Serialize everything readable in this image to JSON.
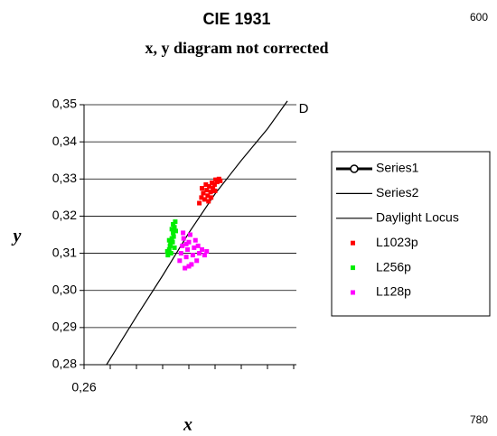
{
  "chart_data": {
    "type": "scatter",
    "title": "CIE 1931",
    "subtitle": "x, y  diagram not corrected",
    "x_label": "x",
    "y_label": "y",
    "annotations": [
      "600",
      "780",
      "D"
    ],
    "xlim": [
      0.26,
      0.34
    ],
    "xticks": [
      {
        "value": 0.26,
        "label": "0,26"
      }
    ],
    "xminor_ticks": [
      0.27,
      0.28,
      0.29,
      0.3,
      0.31,
      0.32,
      0.33,
      0.34
    ],
    "ylim": [
      0.28,
      0.35
    ],
    "yticks": [
      {
        "value": 0.28,
        "label": "0,28"
      },
      {
        "value": 0.29,
        "label": "0,29"
      },
      {
        "value": 0.3,
        "label": "0,30"
      },
      {
        "value": 0.31,
        "label": "0,31"
      },
      {
        "value": 0.32,
        "label": "0,32"
      },
      {
        "value": 0.33,
        "label": "0,33"
      },
      {
        "value": 0.34,
        "label": "0,34"
      },
      {
        "value": 0.35,
        "label": "0,35"
      }
    ],
    "grid": true,
    "legend": "right",
    "series": [
      {
        "name": "Series1",
        "style": "line-marker",
        "color": "#000000",
        "x": [],
        "y": []
      },
      {
        "name": "Series2",
        "style": "line",
        "color": "#000000",
        "x": [],
        "y": []
      },
      {
        "name": "Daylight Locus",
        "style": "line",
        "color": "#000000",
        "x": [
          0.2686,
          0.28,
          0.29,
          0.3,
          0.31,
          0.32,
          0.33,
          0.3376
        ],
        "y": [
          0.28,
          0.293,
          0.304,
          0.3155,
          0.326,
          0.335,
          0.3435,
          0.351
        ]
      },
      {
        "name": "L1023p",
        "style": "marker",
        "color": "#ff0000",
        "x": [
          0.304,
          0.3048,
          0.3055,
          0.306,
          0.3068,
          0.3072,
          0.3078,
          0.3083,
          0.3088,
          0.3092,
          0.3098,
          0.3102,
          0.3108,
          0.3115,
          0.312,
          0.305,
          0.3065,
          0.3085,
          0.31,
          0.3075
        ],
        "y": [
          0.3235,
          0.325,
          0.3262,
          0.3245,
          0.327,
          0.3255,
          0.328,
          0.3265,
          0.329,
          0.3275,
          0.3285,
          0.3298,
          0.3292,
          0.33,
          0.3295,
          0.3275,
          0.3285,
          0.325,
          0.3268,
          0.324
        ]
      },
      {
        "name": "L256p",
        "style": "marker",
        "color": "#00ee00",
        "x": [
          0.292,
          0.2925,
          0.293,
          0.2935,
          0.294,
          0.2945,
          0.2948,
          0.2918,
          0.2932,
          0.2938,
          0.2942,
          0.2928,
          0.295,
          0.2935,
          0.2945,
          0.2925,
          0.294
        ],
        "y": [
          0.3095,
          0.311,
          0.3125,
          0.314,
          0.3155,
          0.317,
          0.3185,
          0.3105,
          0.31,
          0.313,
          0.3145,
          0.312,
          0.316,
          0.3165,
          0.3115,
          0.3135,
          0.3178
        ]
      },
      {
        "name": "L128p",
        "style": "marker",
        "color": "#ff00ff",
        "x": [
          0.2965,
          0.297,
          0.2975,
          0.298,
          0.2985,
          0.299,
          0.2995,
          0.3,
          0.3005,
          0.301,
          0.3015,
          0.302,
          0.3025,
          0.303,
          0.304,
          0.305,
          0.306,
          0.3068,
          0.2978,
          0.3,
          0.3035,
          0.299
        ],
        "y": [
          0.308,
          0.31,
          0.312,
          0.314,
          0.306,
          0.309,
          0.311,
          0.313,
          0.315,
          0.307,
          0.3095,
          0.3115,
          0.3135,
          0.308,
          0.31,
          0.311,
          0.3095,
          0.3105,
          0.3155,
          0.3065,
          0.312,
          0.3125
        ]
      }
    ]
  }
}
